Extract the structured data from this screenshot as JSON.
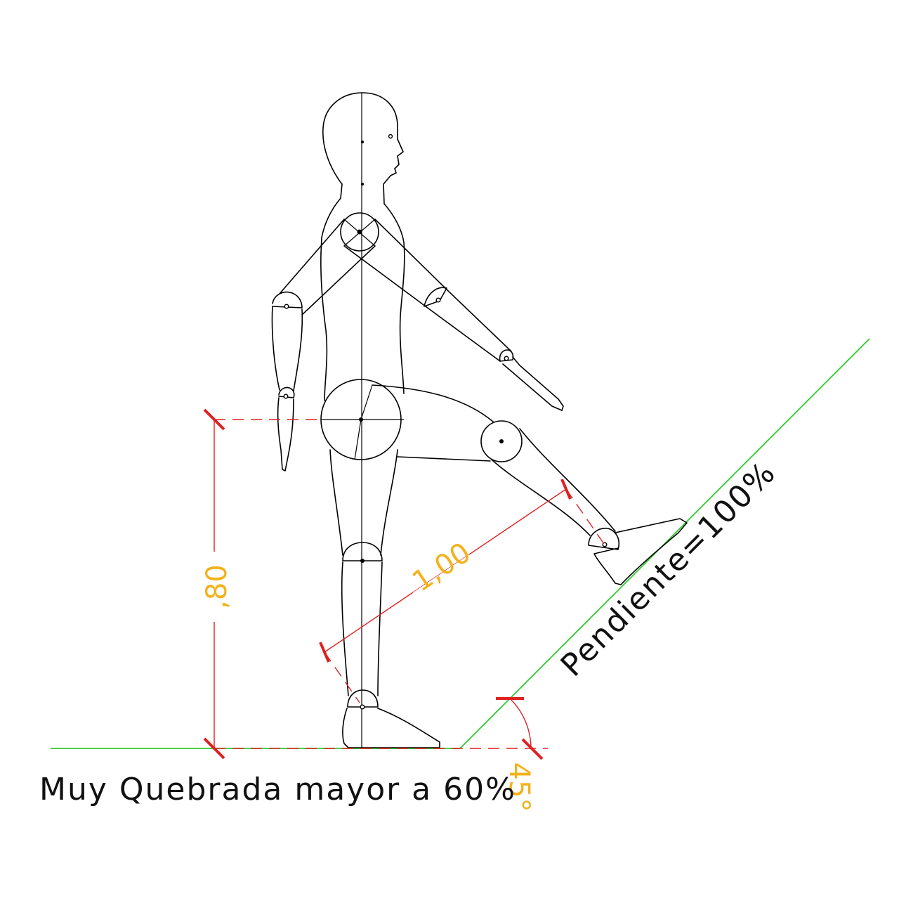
{
  "diagram": {
    "caption": "Muy Quebrada mayor a 60%",
    "slope_label": "Pendiente=100%",
    "dimensions": {
      "vertical": ",80",
      "diagonal": "1,00",
      "angle": "45°"
    },
    "colors": {
      "ground": "#2ecc2e",
      "dimension_line": "#e02020",
      "dimension_text": "#f2b21b",
      "figure": "#000000"
    }
  }
}
